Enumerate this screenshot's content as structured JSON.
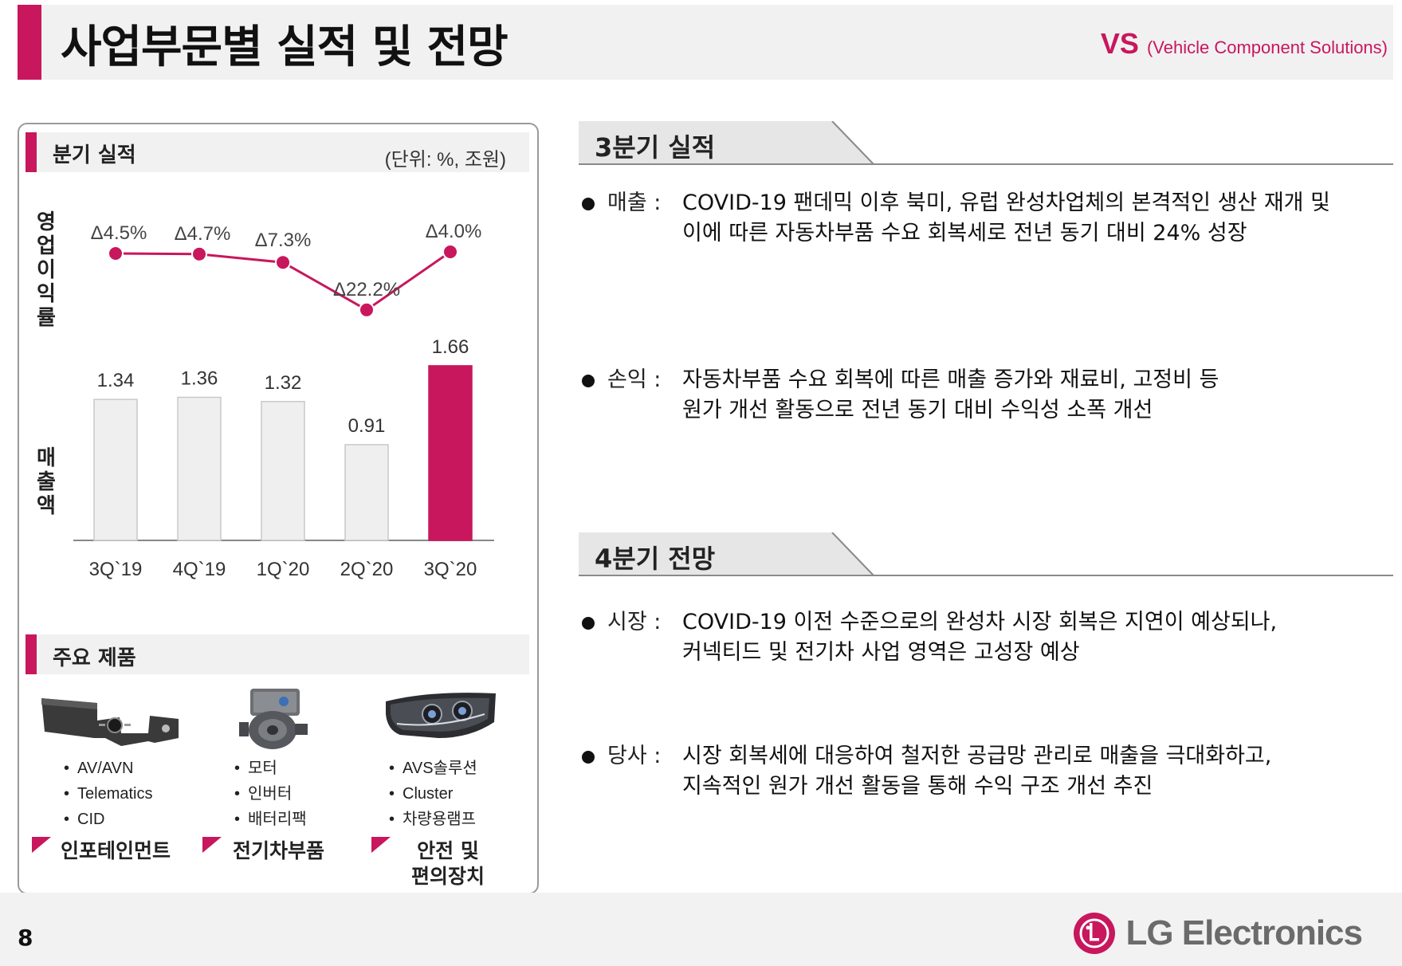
{
  "header": {
    "title": "사업부문별 실적 및 전망",
    "division_code": "VS",
    "division_name": "(Vehicle Component Solutions)"
  },
  "left_panel": {
    "quarterly": {
      "title": "분기 실적",
      "unit": "(단위: %, 조원)",
      "margin_label": "영업이익률",
      "sales_label": "매출액"
    },
    "products": {
      "title": "주요 제품",
      "groups": [
        {
          "items": [
            "AV/AVN",
            "Telematics",
            "CID"
          ],
          "category": "인포테인먼트",
          "icon": "infotainment-module-icon"
        },
        {
          "items": [
            "모터",
            "인버터",
            "배터리팩"
          ],
          "category": "전기차부품",
          "icon": "ev-motor-icon"
        },
        {
          "items": [
            "AVS솔루션",
            "Cluster",
            "차량용램프"
          ],
          "category": "안전 및 편의장치",
          "icon": "headlamp-icon"
        }
      ]
    }
  },
  "chart_data": [
    {
      "type": "line",
      "title": "영업이익률",
      "categories": [
        "3Q`19",
        "4Q`19",
        "1Q`20",
        "2Q`20",
        "3Q`20"
      ],
      "values": [
        -4.5,
        -4.7,
        -7.3,
        -22.2,
        -4.0
      ],
      "data_labels": [
        "Δ4.5%",
        "Δ4.7%",
        "Δ7.3%",
        "Δ22.2%",
        "Δ4.0%"
      ],
      "ylabel": "영업이익률 (%)",
      "color": "#c8175d"
    },
    {
      "type": "bar",
      "title": "매출액",
      "categories": [
        "3Q`19",
        "4Q`19",
        "1Q`20",
        "2Q`20",
        "3Q`20"
      ],
      "values": [
        1.34,
        1.36,
        1.32,
        0.91,
        1.66
      ],
      "data_labels": [
        "1.34",
        "1.36",
        "1.32",
        "0.91",
        "1.66"
      ],
      "ylabel": "매출액 (조원)",
      "ylim": [
        0,
        1.8
      ],
      "bar_color": "#efefef",
      "highlight_color": "#c8175d",
      "highlight_index": 4
    }
  ],
  "q3": {
    "title": "3분기 실적",
    "bullets": [
      {
        "label": "매출 :",
        "lines": [
          "COVID-19 팬데믹 이후 북미, 유럽 완성차업체의 본격적인 생산 재개 및",
          "이에 따른 자동차부품 수요 회복세로 전년 동기 대비 24% 성장"
        ]
      },
      {
        "label": "손익 :",
        "lines": [
          "자동차부품 수요 회복에 따른 매출 증가와 재료비, 고정비 등",
          "원가 개선 활동으로 전년 동기 대비 수익성 소폭 개선"
        ]
      }
    ]
  },
  "q4": {
    "title": "4분기 전망",
    "bullets": [
      {
        "label": "시장 :",
        "lines": [
          "COVID-19 이전 수준으로의 완성차 시장 회복은 지연이 예상되나,",
          "커넥티드 및 전기차 사업 영역은 고성장 예상"
        ]
      },
      {
        "label": "당사 :",
        "lines": [
          "시장 회복세에 대응하여 철저한 공급망 관리로 매출을 극대화하고,",
          "지속적인 원가 개선 활동을 통해 수익 구조 개선 추진"
        ]
      }
    ]
  },
  "footer": {
    "page_number": "8",
    "logo_mark": "LG",
    "logo_text": "LG Electronics"
  },
  "colors": {
    "accent": "#c8175d",
    "header_bg": "#f1f1f1",
    "bar_gray": "#efefef"
  }
}
